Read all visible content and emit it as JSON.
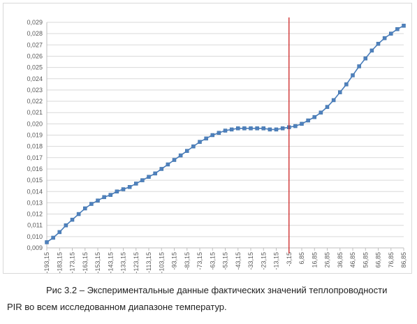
{
  "caption": {
    "line1": "Рис 3.2 – Экспериментальные данные фактических значений теплопроводности",
    "line2": "PIR во всем исследованном диапазоне температур."
  },
  "colors": {
    "series": "#4a7ebb",
    "marker": "#4f81bd",
    "marker_line": "#3a6ea5",
    "grid": "#d9d9d9",
    "axis": "#bfbfbf",
    "vline": "#cc2222"
  },
  "chart_data": {
    "type": "line",
    "title": "",
    "xlabel": "",
    "ylabel": "",
    "grid": "horizontal",
    "legend": "none",
    "markers": "square",
    "ylim": [
      0.009,
      0.029
    ],
    "y_ticks": [
      "0,009",
      "0,010",
      "0,011",
      "0,012",
      "0,013",
      "0,014",
      "0,015",
      "0,016",
      "0,017",
      "0,018",
      "0,019",
      "0,020",
      "0,021",
      "0,022",
      "0,023",
      "0,024",
      "0,025",
      "0,026",
      "0,027",
      "0,028",
      "0,029"
    ],
    "x_ticks": [
      "-193,15",
      "-183,15",
      "-173,15",
      "-163,15",
      "-153,15",
      "-143,15",
      "-133,15",
      "-123,15",
      "-113,15",
      "-103,15",
      "-93,15",
      "-83,15",
      "-73,15",
      "-63,15",
      "-53,15",
      "-43,15",
      "-33,15",
      "-23,15",
      "-13,15",
      "-3,15",
      "6,85",
      "16,85",
      "26,85",
      "36,85",
      "46,85",
      "56,85",
      "66,85",
      "76,85",
      "86,85"
    ],
    "vertical_marker_x": -3.15,
    "series": [
      {
        "x": [
          -193.15,
          -188.15,
          -183.15,
          -178.15,
          -173.15,
          -168.15,
          -163.15,
          -158.15,
          -153.15,
          -148.15,
          -143.15,
          -138.15,
          -133.15,
          -128.15,
          -123.15,
          -118.15,
          -113.15,
          -108.15,
          -103.15,
          -98.15,
          -93.15,
          -88.15,
          -83.15,
          -78.15,
          -73.15,
          -68.15,
          -63.15,
          -58.15,
          -53.15,
          -48.15,
          -43.15,
          -38.15,
          -33.15,
          -28.15,
          -23.15,
          -18.15,
          -13.15,
          -8.15,
          -3.15,
          1.85,
          6.85,
          11.85,
          16.85,
          21.85,
          26.85,
          31.85,
          36.85,
          41.85,
          46.85,
          51.85,
          56.85,
          61.85,
          66.85,
          71.85,
          76.85,
          81.85,
          86.85
        ],
        "values": [
          0.0095,
          0.0099,
          0.0104,
          0.011,
          0.0115,
          0.012,
          0.0125,
          0.0129,
          0.0132,
          0.0135,
          0.0137,
          0.014,
          0.0142,
          0.0144,
          0.0147,
          0.015,
          0.0153,
          0.0156,
          0.016,
          0.0164,
          0.0168,
          0.0172,
          0.0176,
          0.018,
          0.0184,
          0.0187,
          0.019,
          0.0192,
          0.0194,
          0.0195,
          0.0196,
          0.0196,
          0.0196,
          0.0196,
          0.0196,
          0.0195,
          0.0195,
          0.0196,
          0.0197,
          0.0198,
          0.02,
          0.0203,
          0.0206,
          0.021,
          0.0215,
          0.0221,
          0.0228,
          0.0235,
          0.0243,
          0.0251,
          0.0258,
          0.0265,
          0.0271,
          0.0276,
          0.028,
          0.0284,
          0.0287
        ]
      }
    ]
  }
}
